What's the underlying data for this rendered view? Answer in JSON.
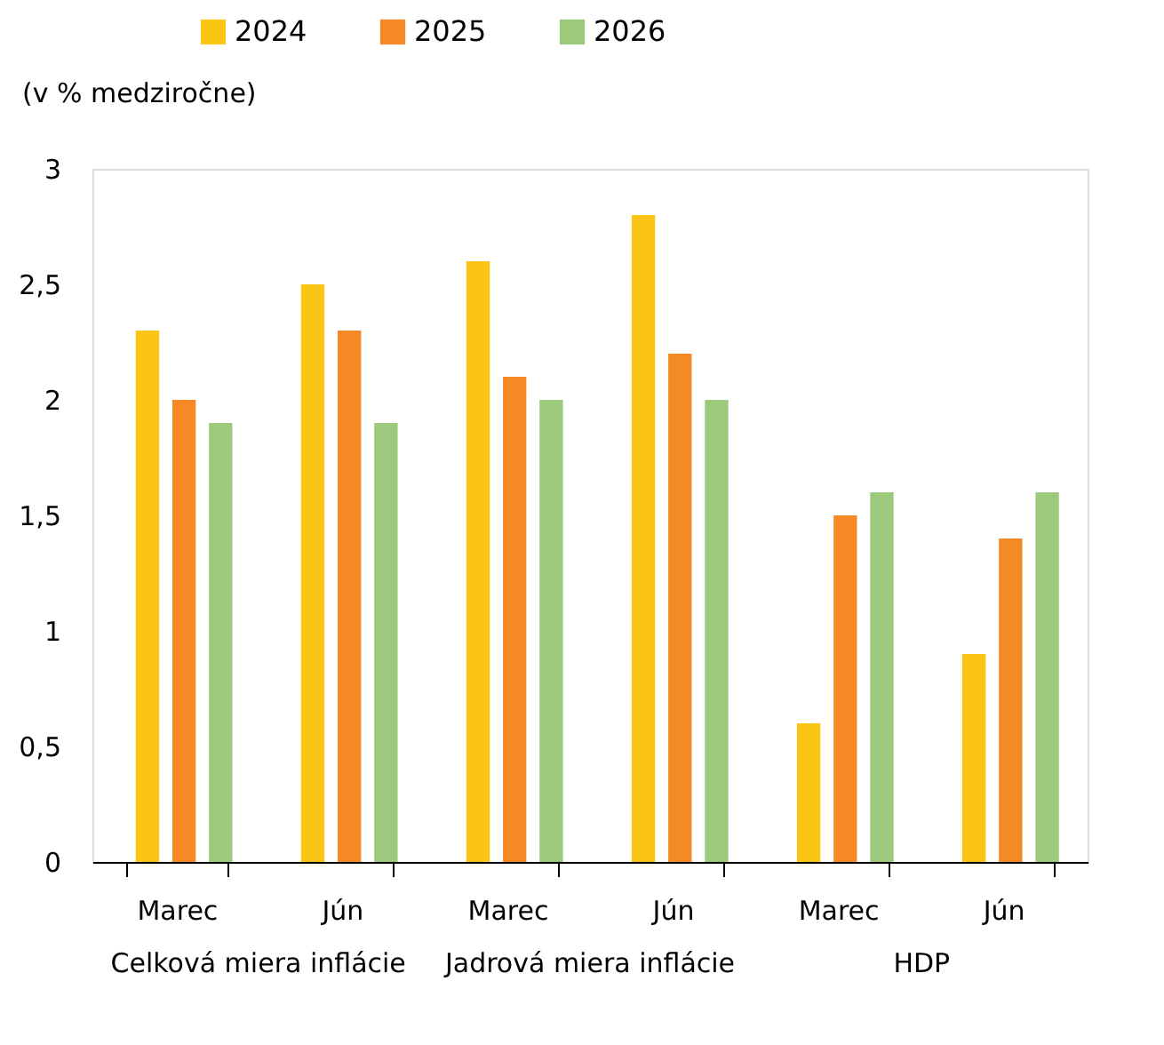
{
  "chart_data": {
    "type": "bar",
    "ylabel": "(v % medziročne)",
    "categories": [
      "Marec",
      "Jún",
      "Marec",
      "Jún",
      "Marec",
      "Jún"
    ],
    "series": [
      {
        "name": "2024",
        "color": "#fac515",
        "values": [
          2.3,
          2.5,
          2.6,
          2.8,
          0.6,
          0.9
        ]
      },
      {
        "name": "2025",
        "color": "#f58a25",
        "values": [
          2.0,
          2.3,
          2.1,
          2.2,
          1.5,
          1.4
        ]
      },
      {
        "name": "2026",
        "color": "#9dc97c",
        "values": [
          1.9,
          1.9,
          2.0,
          2.0,
          1.6,
          1.6
        ]
      }
    ],
    "ylim": [
      0,
      3
    ],
    "yticks": [
      0,
      {
        "value": 0.5,
        "label": "0,5"
      },
      1,
      {
        "value": 1.5,
        "label": "1,5"
      },
      2,
      {
        "value": 2.5,
        "label": "2,5"
      },
      3
    ],
    "legend": "top left",
    "annotations": [
      "Celková miera inflácie",
      "Jadrová miera inflácie",
      "HDP"
    ]
  }
}
